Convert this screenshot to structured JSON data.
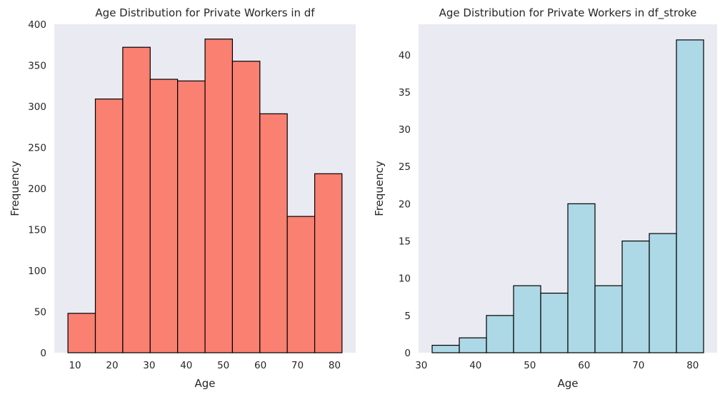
{
  "chart_data": [
    {
      "type": "bar",
      "title": "Age Distribution for Private Workers in df",
      "xlabel": "Age",
      "ylabel": "Frequency",
      "bin_edges": [
        8.08,
        15.48,
        22.87,
        30.27,
        37.66,
        45.06,
        52.45,
        59.85,
        67.24,
        74.64,
        82.0
      ],
      "values": [
        48,
        309,
        372,
        333,
        331,
        382,
        355,
        291,
        166,
        218
      ],
      "xlim": [
        4.4,
        85.7
      ],
      "ylim": [
        0,
        400
      ],
      "xticks": [
        10,
        20,
        30,
        40,
        50,
        60,
        70,
        80
      ],
      "yticks": [
        0,
        50,
        100,
        150,
        200,
        250,
        300,
        350,
        400
      ],
      "bar_color": "#fa8072",
      "edge_color": "#000000",
      "background_color": "#eaeaf2",
      "grid": false
    },
    {
      "type": "bar",
      "title": "Age Distribution for Private Workers in df_stroke",
      "xlabel": "Age",
      "ylabel": "Frequency",
      "bin_edges": [
        32,
        37,
        42,
        47,
        52,
        57,
        62,
        67,
        72,
        77,
        82
      ],
      "values": [
        1,
        2,
        5,
        9,
        8,
        20,
        9,
        15,
        16,
        42
      ],
      "xlim": [
        29.5,
        84.5
      ],
      "ylim": [
        0,
        44.1
      ],
      "xticks": [
        30,
        40,
        50,
        60,
        70,
        80
      ],
      "yticks": [
        0,
        5,
        10,
        15,
        20,
        25,
        30,
        35,
        40
      ],
      "bar_color": "#add8e6",
      "edge_color": "#000000",
      "background_color": "#eaeaf2",
      "grid": false
    }
  ]
}
